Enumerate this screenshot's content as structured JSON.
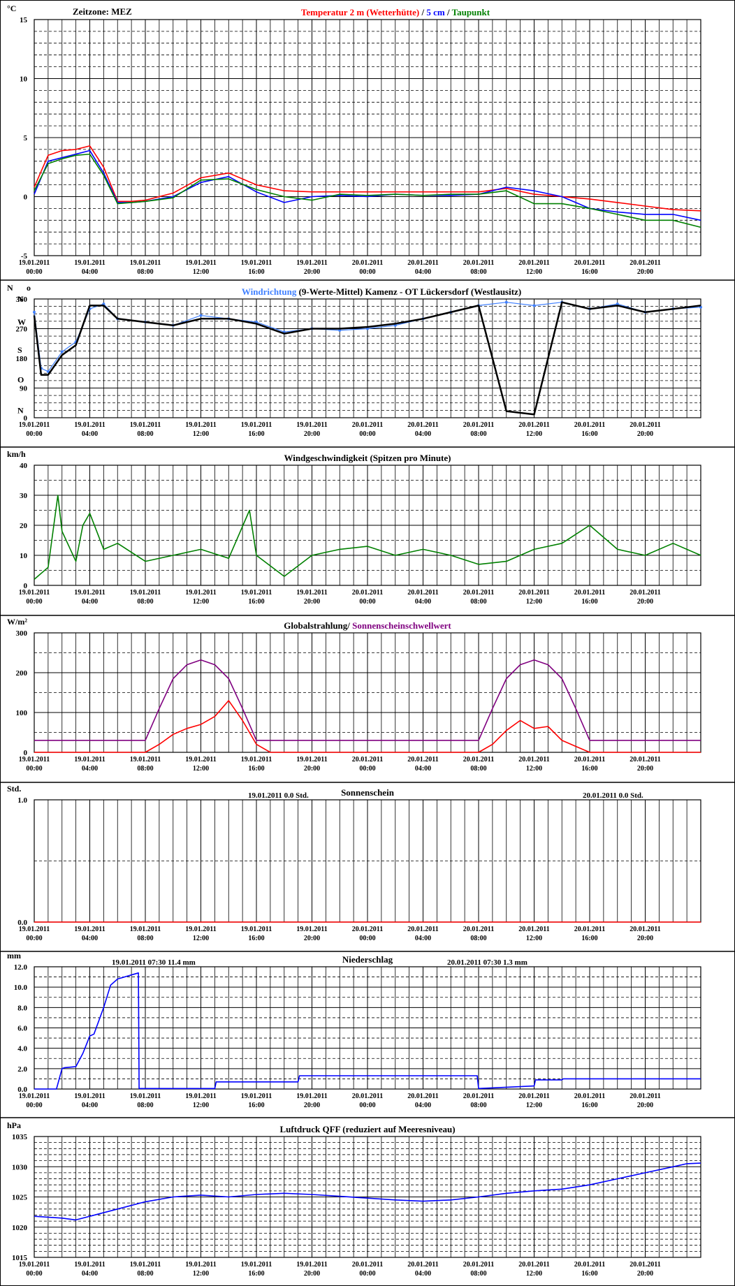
{
  "chart_data": [
    {
      "id": "temperature",
      "type": "line",
      "unit": "°C",
      "title_parts": [
        {
          "text": "Temperatur 2 m (Wetterhütte)",
          "color": "#ff0000"
        },
        {
          "text": "  /  ",
          "color": "#000000"
        },
        {
          "text": "5 cm",
          "color": "#0000ff"
        },
        {
          "text": " / ",
          "color": "#000000"
        },
        {
          "text": "Taupunkt",
          "color": "#008000"
        }
      ],
      "left_text": "Zeitzone: MEZ",
      "ylim": [
        -5,
        15
      ],
      "yticks": [
        -5,
        0,
        5,
        10,
        15
      ],
      "ytick_labels": [
        "-5",
        "0",
        "5",
        "10",
        "15"
      ],
      "minor_step": 1,
      "x_hours": [
        0,
        1,
        2,
        3,
        4,
        5,
        6,
        7,
        8,
        10,
        12,
        14,
        16,
        18,
        20,
        22,
        24,
        26,
        28,
        30,
        32,
        34,
        36,
        38,
        40,
        42,
        44,
        46,
        48
      ],
      "series": [
        {
          "name": "Temperatur 2 m (Wetterhütte)",
          "color": "#ff0000",
          "y": [
            0.8,
            3.5,
            3.9,
            4.0,
            4.3,
            2.5,
            -0.4,
            -0.4,
            -0.3,
            0.3,
            1.6,
            2.0,
            1.0,
            0.5,
            0.4,
            0.4,
            0.4,
            0.4,
            0.4,
            0.4,
            0.4,
            0.7,
            0.2,
            0.0,
            -0.2,
            -0.5,
            -0.8,
            -1.1,
            -1.2
          ]
        },
        {
          "name": "5 cm",
          "color": "#0000ff",
          "y": [
            0.2,
            3.0,
            3.3,
            3.6,
            3.9,
            2.0,
            -0.5,
            -0.5,
            -0.4,
            0.0,
            1.2,
            1.7,
            0.4,
            -0.5,
            0.0,
            0.1,
            0.0,
            0.2,
            0.1,
            0.1,
            0.2,
            0.8,
            0.5,
            0.0,
            -1.0,
            -1.3,
            -1.5,
            -1.5,
            -2.0
          ]
        },
        {
          "name": "Taupunkt",
          "color": "#008000",
          "y": [
            0.5,
            2.8,
            3.2,
            3.5,
            3.6,
            1.8,
            -0.6,
            -0.5,
            -0.4,
            -0.1,
            1.4,
            1.5,
            0.6,
            0.0,
            -0.3,
            0.2,
            0.1,
            0.2,
            0.1,
            0.2,
            0.2,
            0.5,
            -0.6,
            -0.6,
            -1.0,
            -1.5,
            -2.0,
            -2.0,
            -2.6
          ]
        }
      ]
    },
    {
      "id": "wind-direction",
      "type": "scatter",
      "unit": "N",
      "title_parts": [
        {
          "text": "Windrichtung",
          "color": "#4080ff"
        },
        {
          "text": " (9-Werte-Mittel)",
          "color": "#000000"
        },
        {
          "text": "          Kamenz - OT Lückersdorf (Westlausitz)",
          "color": "#000000"
        }
      ],
      "ylim": [
        0,
        360
      ],
      "yticks": [
        0,
        90,
        180,
        270,
        360
      ],
      "ytick_labels": [
        "0",
        "90",
        "180",
        "270",
        "360"
      ],
      "compass": [
        {
          "label": "N",
          "value": 360
        },
        {
          "label": "W",
          "value": 290
        },
        {
          "label": "S",
          "value": 205
        },
        {
          "label": "O",
          "value": 115
        },
        {
          "label": "N",
          "value": 22
        }
      ],
      "minor_step": 22.5,
      "x_hours": [
        0,
        0.5,
        1,
        2,
        3,
        4,
        5,
        6,
        8,
        10,
        12,
        14,
        16,
        18,
        20,
        22,
        24,
        26,
        28,
        30,
        32,
        34,
        36,
        38,
        40,
        42,
        44,
        46,
        48
      ],
      "series": [
        {
          "name": "Windrichtung",
          "color": "#4080ff",
          "y": [
            320,
            150,
            140,
            200,
            230,
            330,
            345,
            300,
            290,
            280,
            310,
            300,
            290,
            260,
            270,
            265,
            270,
            280,
            300,
            320,
            340,
            350,
            340,
            350,
            330,
            345,
            320,
            330,
            335
          ]
        },
        {
          "name": "9-Werte-Mittel",
          "color": "#000000",
          "y": [
            310,
            130,
            130,
            190,
            220,
            340,
            340,
            300,
            290,
            280,
            300,
            300,
            285,
            255,
            270,
            270,
            275,
            285,
            300,
            320,
            340,
            20,
            10,
            350,
            330,
            340,
            320,
            330,
            340
          ]
        }
      ]
    },
    {
      "id": "wind-speed",
      "type": "line",
      "unit": "km/h",
      "title_parts": [
        {
          "text": "Windgeschwindigkeit (Spitzen pro Minute)",
          "color": "#000000"
        }
      ],
      "ylim": [
        0,
        40
      ],
      "yticks": [
        0,
        10,
        20,
        30,
        40
      ],
      "ytick_labels": [
        "0",
        "10",
        "20",
        "30",
        "40"
      ],
      "minor_step": 5,
      "x_hours": [
        0,
        1,
        1.7,
        2,
        3,
        3.5,
        4,
        5,
        6,
        8,
        10,
        12,
        14,
        15.5,
        16,
        18,
        20,
        22,
        24,
        26,
        28,
        30,
        32,
        34,
        36,
        38,
        40,
        42,
        44,
        46,
        48
      ],
      "series": [
        {
          "name": "Windgeschwindigkeit",
          "color": "#008000",
          "y": [
            2,
            6,
            30,
            18,
            8,
            20,
            24,
            12,
            14,
            8,
            10,
            12,
            9,
            25,
            10,
            3,
            10,
            12,
            13,
            10,
            12,
            10,
            7,
            8,
            12,
            14,
            20,
            12,
            10,
            14,
            10
          ]
        }
      ]
    },
    {
      "id": "global-radiation",
      "type": "line",
      "unit": "W/m²",
      "title_parts": [
        {
          "text": "Globalstrahlung/ ",
          "color": "#000000"
        },
        {
          "text": "Sonnenscheinschwellwert",
          "color": "#800080"
        }
      ],
      "ylim": [
        0,
        300
      ],
      "yticks": [
        0,
        100,
        200,
        300
      ],
      "ytick_labels": [
        "0",
        "100",
        "200",
        "300"
      ],
      "minor_step": 50,
      "x_hours": [
        0,
        8,
        9,
        10,
        11,
        12,
        13,
        14,
        15,
        16,
        17,
        24,
        32,
        33,
        34,
        35,
        36,
        37,
        38,
        39,
        40,
        41,
        48
      ],
      "series": [
        {
          "name": "Globalstrahlung",
          "color": "#ff0000",
          "y": [
            0,
            0,
            20,
            45,
            60,
            70,
            90,
            130,
            80,
            20,
            0,
            0,
            0,
            20,
            55,
            80,
            60,
            65,
            30,
            15,
            0,
            0,
            0
          ]
        },
        {
          "name": "Sonnenscheinschwellwert",
          "color": "#800080",
          "y": [
            30,
            30,
            110,
            185,
            220,
            232,
            220,
            185,
            110,
            30,
            30,
            30,
            30,
            110,
            185,
            220,
            232,
            220,
            185,
            110,
            30,
            30,
            30
          ]
        }
      ]
    },
    {
      "id": "sunshine",
      "type": "bar",
      "unit": "Std.",
      "title_parts": [
        {
          "text": "Sonnenschein",
          "color": "#000000"
        }
      ],
      "annotations": [
        {
          "text": "19.01.2011     0.0    Std.",
          "position": "center-left"
        },
        {
          "text": "20.01.2011     0.0    Std.",
          "position": "right"
        }
      ],
      "ylim": [
        0,
        1
      ],
      "yticks": [
        0,
        1
      ],
      "ytick_labels": [
        "0.0",
        "1.0"
      ],
      "minor_step": 0.5,
      "x_hours": [
        0,
        48
      ],
      "series": [
        {
          "name": "Sonnenschein",
          "color": "#ff0000",
          "y": [
            0,
            0
          ]
        }
      ]
    },
    {
      "id": "precipitation",
      "type": "line",
      "unit": "mm",
      "title_parts": [
        {
          "text": "Niederschlag",
          "color": "#000000"
        }
      ],
      "annotations": [
        {
          "text": "19.01.2011 07:30      11.4  mm",
          "position": "left"
        },
        {
          "text": "20.01.2011 07:30      1.3  mm",
          "position": "right"
        }
      ],
      "ylim": [
        0,
        12
      ],
      "yticks": [
        0,
        2,
        4,
        6,
        8,
        10,
        12
      ],
      "ytick_labels": [
        "0.0",
        "2.0",
        "4.0",
        "6.0",
        "8.0",
        "10.0",
        "12.0"
      ],
      "minor_step": 1,
      "x_hours": [
        0,
        1.6,
        2,
        2.2,
        3,
        3.5,
        4,
        4.3,
        5,
        5.5,
        6,
        7,
        7.5,
        7.55,
        13,
        13.1,
        19,
        19.1,
        31.9,
        32,
        36,
        36.1,
        38,
        38.1,
        48
      ],
      "series": [
        {
          "name": "Niederschlag",
          "color": "#0000ff",
          "y": [
            0,
            0,
            2.0,
            2.1,
            2.2,
            3.5,
            5.2,
            5.4,
            8.0,
            10.2,
            10.8,
            11.2,
            11.4,
            0.05,
            0.05,
            0.7,
            0.7,
            1.3,
            1.3,
            0.05,
            0.3,
            0.9,
            0.9,
            1.0,
            1.0
          ]
        }
      ]
    },
    {
      "id": "pressure",
      "type": "line",
      "unit": "hPa",
      "title_parts": [
        {
          "text": "Luftdruck QFF (reduziert auf Meeresniveau)",
          "color": "#000000"
        }
      ],
      "ylim": [
        1015,
        1035
      ],
      "yticks": [
        1015,
        1020,
        1025,
        1030,
        1035
      ],
      "ytick_labels": [
        "1015",
        "1020",
        "1025",
        "1030",
        "1035"
      ],
      "minor_step": 1,
      "x_hours": [
        0,
        2,
        3,
        4,
        6,
        8,
        10,
        12,
        14,
        16,
        18,
        20,
        22,
        24,
        26,
        28,
        30,
        32,
        34,
        36,
        38,
        40,
        42,
        44,
        46,
        47,
        48
      ],
      "series": [
        {
          "name": "Luftdruck QFF",
          "color": "#0000ff",
          "y": [
            1021.8,
            1021.5,
            1021.2,
            1021.8,
            1023.0,
            1024.2,
            1025.0,
            1025.3,
            1025.0,
            1025.4,
            1025.6,
            1025.4,
            1025.1,
            1024.8,
            1024.5,
            1024.3,
            1024.5,
            1025.0,
            1025.6,
            1026.0,
            1026.3,
            1027.0,
            1028.0,
            1029.0,
            1030.0,
            1030.5,
            1030.6
          ]
        }
      ]
    }
  ],
  "x_axis": {
    "range_hours": [
      0,
      48
    ],
    "labels": [
      {
        "hour": 0,
        "date": "19.01.2011",
        "time": "00:00"
      },
      {
        "hour": 4,
        "date": "19.01.2011",
        "time": "04:00"
      },
      {
        "hour": 8,
        "date": "19.01.2011",
        "time": "08:00"
      },
      {
        "hour": 12,
        "date": "19.01.2011",
        "time": "12:00"
      },
      {
        "hour": 16,
        "date": "19.01.2011",
        "time": "16:00"
      },
      {
        "hour": 20,
        "date": "19.01.2011",
        "time": "20:00"
      },
      {
        "hour": 24,
        "date": "20.01.2011",
        "time": "00:00"
      },
      {
        "hour": 28,
        "date": "20.01.2011",
        "time": "04:00"
      },
      {
        "hour": 32,
        "date": "20.01.2011",
        "time": "08:00"
      },
      {
        "hour": 36,
        "date": "20.01.2011",
        "time": "12:00"
      },
      {
        "hour": 40,
        "date": "20.01.2011",
        "time": "16:00"
      },
      {
        "hour": 44,
        "date": "20.01.2011",
        "time": "20:00"
      }
    ],
    "minor_step_hours": 1
  }
}
